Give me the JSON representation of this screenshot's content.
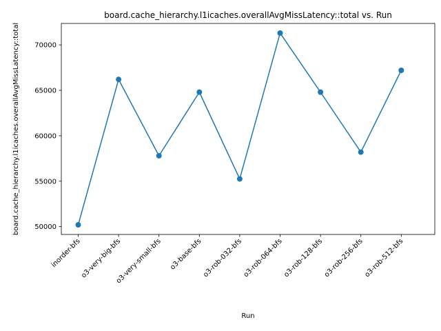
{
  "chart_data": {
    "type": "line",
    "title": "board.cache_hierarchy.l1icaches.overallAvgMissLatency::total vs. Run",
    "xlabel": "Run",
    "ylabel": "board.cache_hierarchy.l1icaches.overallAvgMissLatency::total",
    "categories": [
      "inorder-bfs",
      "o3-very-big-bfs",
      "o3-very-small-bfs",
      "o3-base-bfs",
      "o3-rob-032-bfs",
      "o3-rob-064-bfs",
      "o3-rob-128-bfs",
      "o3-rob-256-bfs",
      "o3-rob-512-bfs"
    ],
    "series": [
      {
        "values": [
          50200,
          66200,
          57800,
          64800,
          55250,
          71300,
          64800,
          58200,
          67200
        ],
        "color": "#1f77b4",
        "marker": "circle"
      }
    ],
    "yticks": [
      50000,
      55000,
      60000,
      65000,
      70000
    ],
    "ylim": [
      49140,
      72360
    ],
    "grid": false,
    "legend": "none"
  }
}
